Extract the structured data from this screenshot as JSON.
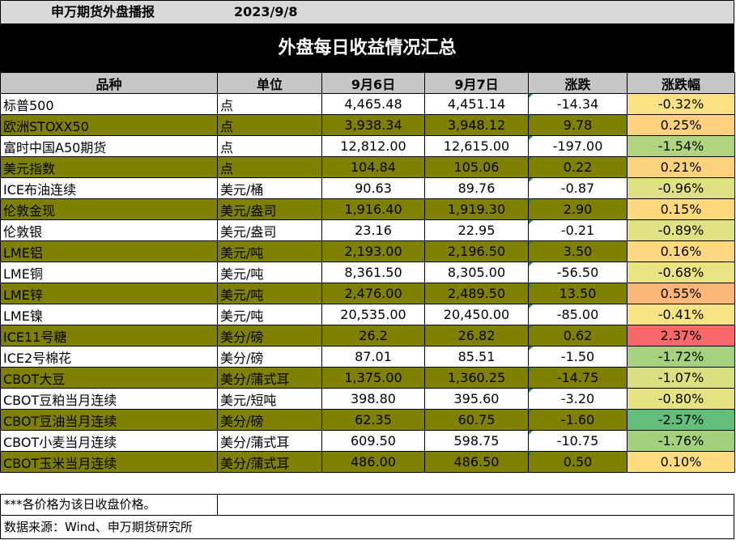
{
  "header": {
    "title": "申万期货外盘播报",
    "date": "2023/9/8",
    "banner": "外盘每日收益情况汇总"
  },
  "table": {
    "columns": [
      "品种",
      "单位",
      "9月6日",
      "9月7日",
      "涨跌",
      "涨跌幅"
    ],
    "rows": [
      {
        "name": "标普500",
        "unit": "点",
        "d1": "4,465.48",
        "d2": "4,451.14",
        "chg": "-14.34",
        "pct": "-0.32%",
        "color": "#fce283"
      },
      {
        "name": "欧洲STOXX50",
        "unit": "点",
        "d1": "3,938.34",
        "d2": "3,948.12",
        "chg": "9.78",
        "pct": "0.25%",
        "color": "#fdd17e"
      },
      {
        "name": "富时中国A50期货",
        "unit": "点",
        "d1": "12,812.00",
        "d2": "12,615.00",
        "chg": "-197.00",
        "pct": "-1.54%",
        "color": "#b1d57f"
      },
      {
        "name": "美元指数",
        "unit": "点",
        "d1": "104.84",
        "d2": "105.06",
        "chg": "0.22",
        "pct": "0.21%",
        "color": "#fdd27f"
      },
      {
        "name": "ICE布油连续",
        "unit": "美元/桶",
        "d1": "90.63",
        "d2": "89.76",
        "chg": "-0.87",
        "pct": "-0.96%",
        "color": "#dee283"
      },
      {
        "name": "伦敦金现",
        "unit": "美元/盎司",
        "d1": "1,916.40",
        "d2": "1,919.30",
        "chg": "2.90",
        "pct": "0.15%",
        "color": "#fed980"
      },
      {
        "name": "伦敦银",
        "unit": "美元/盎司",
        "d1": "23.16",
        "d2": "22.95",
        "chg": "-0.21",
        "pct": "-0.89%",
        "color": "#e1e283"
      },
      {
        "name": "LME铝",
        "unit": "美元/吨",
        "d1": "2,193.00",
        "d2": "2,196.50",
        "chg": "3.50",
        "pct": "0.16%",
        "color": "#fed880"
      },
      {
        "name": "LME铜",
        "unit": "美元/吨",
        "d1": "8,361.50",
        "d2": "8,305.00",
        "chg": "-56.50",
        "pct": "-0.68%",
        "color": "#eae483"
      },
      {
        "name": "LME锌",
        "unit": "美元/吨",
        "d1": "2,476.00",
        "d2": "2,489.50",
        "chg": "13.50",
        "pct": "0.55%",
        "color": "#fbb77a"
      },
      {
        "name": "LME镍",
        "unit": "美元/吨",
        "d1": "20,535.00",
        "d2": "20,450.00",
        "chg": "-85.00",
        "pct": "-0.41%",
        "color": "#f7e583"
      },
      {
        "name": "ICE11号糖",
        "unit": "美分/磅",
        "d1": "26.2",
        "d2": "26.82",
        "chg": "0.62",
        "pct": "2.37%",
        "color": "#f8696b"
      },
      {
        "name": "ICE2号棉花",
        "unit": "美分/磅",
        "d1": "87.01",
        "d2": "85.51",
        "chg": "-1.50",
        "pct": "-1.72%",
        "color": "#a6d27f"
      },
      {
        "name": "CBOT大豆",
        "unit": "美分/蒲式耳",
        "d1": "1,375.00",
        "d2": "1,360.25",
        "chg": "-14.75",
        "pct": "-1.07%",
        "color": "#d9e082"
      },
      {
        "name": "CBOT豆粕当月连续",
        "unit": "美元/短吨",
        "d1": "398.80",
        "d2": "395.60",
        "chg": "-3.20",
        "pct": "-0.80%",
        "color": "#e6e383"
      },
      {
        "name": "CBOT豆油当月连续",
        "unit": "美分/磅",
        "d1": "62.35",
        "d2": "60.75",
        "chg": "-1.60",
        "pct": "-2.57%",
        "color": "#63be7b"
      },
      {
        "name": "CBOT小麦当月连续",
        "unit": "美分/蒲式耳",
        "d1": "609.50",
        "d2": "598.75",
        "chg": "-10.75",
        "pct": "-1.76%",
        "color": "#a4d17e"
      },
      {
        "name": "CBOT玉米当月连续",
        "unit": "美分/蒲式耳",
        "d1": "486.00",
        "d2": "486.50",
        "chg": "0.50",
        "pct": "0.10%",
        "color": "#fedd81"
      }
    ]
  },
  "footer": {
    "note": "***各价格为该日收盘价格。",
    "source": "数据来源：Wind、申万期货研究所"
  }
}
